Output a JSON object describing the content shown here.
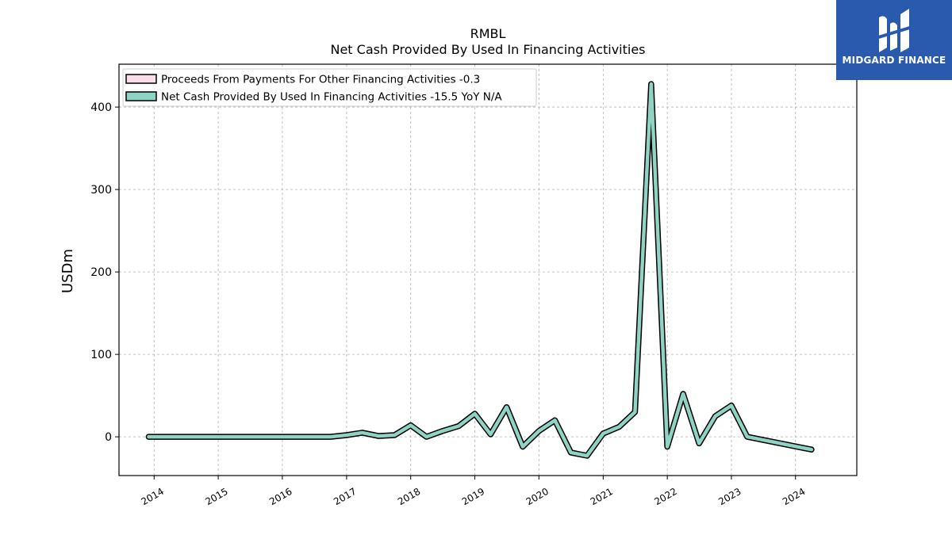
{
  "brand": {
    "name": "MIDGARD FINANCE",
    "mark_icon": "midgard-m-logo-icon",
    "color": "#2a5aad"
  },
  "chart_data": {
    "type": "line",
    "title": "RMBL",
    "subtitle": "Net Cash Provided By Used In Financing Activities",
    "xlabel": "",
    "ylabel": "USDm",
    "xlim": [
      "2013-06-15",
      "2024-12-15"
    ],
    "ylim": [
      -47,
      452
    ],
    "yticks": [
      0,
      100,
      200,
      300,
      400
    ],
    "xticks": [
      "2014",
      "2015",
      "2016",
      "2017",
      "2018",
      "2019",
      "2020",
      "2021",
      "2022",
      "2023",
      "2024"
    ],
    "grid": true,
    "legend_position": "top-left",
    "series": [
      {
        "name": "Proceeds From Payments For Other Financing Activities  -0.3",
        "color": "#fbdde9",
        "x": [],
        "values": []
      },
      {
        "name": "Net Cash Provided By Used In Financing Activities  -15.5 YoY N/A",
        "color": "#8fd3c5",
        "x": [
          "2013-12-01",
          "2016-10-01",
          "2017-01-01",
          "2017-04-01",
          "2017-07-01",
          "2017-10-01",
          "2018-01-01",
          "2018-04-01",
          "2018-07-01",
          "2018-10-01",
          "2019-01-01",
          "2019-04-01",
          "2019-07-01",
          "2019-10-01",
          "2020-01-01",
          "2020-04-01",
          "2020-07-01",
          "2020-10-01",
          "2021-01-01",
          "2021-04-01",
          "2021-07-01",
          "2021-10-01",
          "2022-01-01",
          "2022-04-01",
          "2022-07-01",
          "2022-10-01",
          "2023-01-01",
          "2023-04-01",
          "2024-04-01"
        ],
        "values": [
          0,
          0,
          2,
          5,
          1,
          2,
          14,
          0,
          7,
          13,
          28,
          3,
          36,
          -12,
          7,
          20,
          -19,
          -23,
          4,
          12,
          30,
          428,
          -12,
          52,
          -8,
          25,
          38,
          0,
          -15.5
        ]
      }
    ]
  }
}
